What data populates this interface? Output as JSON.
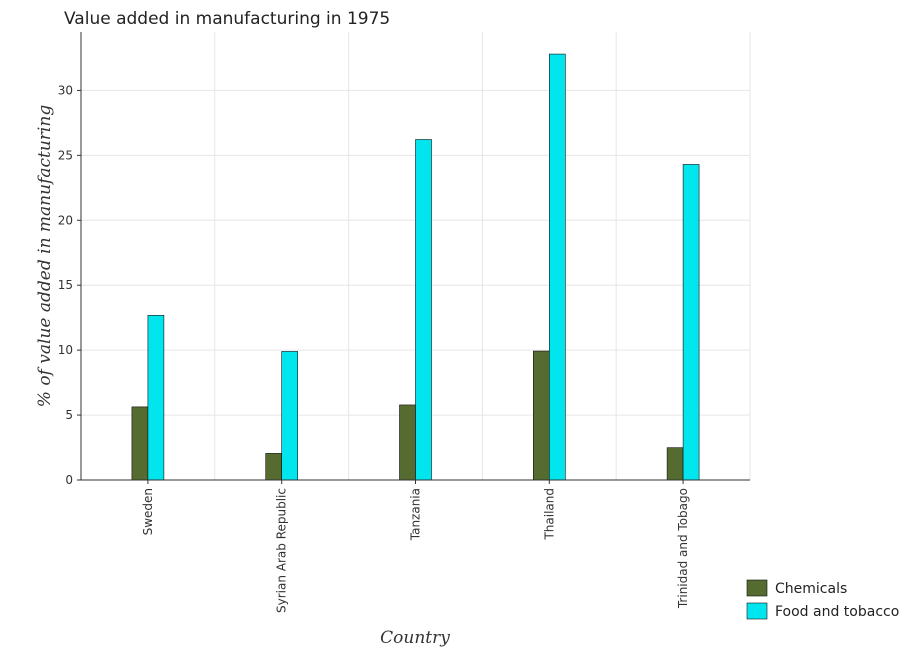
{
  "chart_data": {
    "type": "bar",
    "title": "Value added in manufacturing in 1975",
    "xlabel": "Country",
    "ylabel": "% of value added in manufacturing",
    "categories": [
      "Sweden",
      "Syrian Arab Republic",
      "Tanzania",
      "Thailand",
      "Trinidad and Tobago"
    ],
    "series": [
      {
        "name": "Chemicals",
        "color": "#556b2f",
        "values": [
          5.63,
          2.05,
          5.78,
          9.93,
          2.49
        ]
      },
      {
        "name": "Food and tobacco",
        "color": "#00e5ee",
        "values": [
          12.68,
          9.9,
          26.22,
          32.8,
          24.3
        ]
      }
    ],
    "ylim": [
      0,
      34.5
    ],
    "yticks": [
      0,
      5,
      10,
      15,
      20,
      25,
      30
    ],
    "grid": true,
    "legend_position": "bottom-right"
  }
}
